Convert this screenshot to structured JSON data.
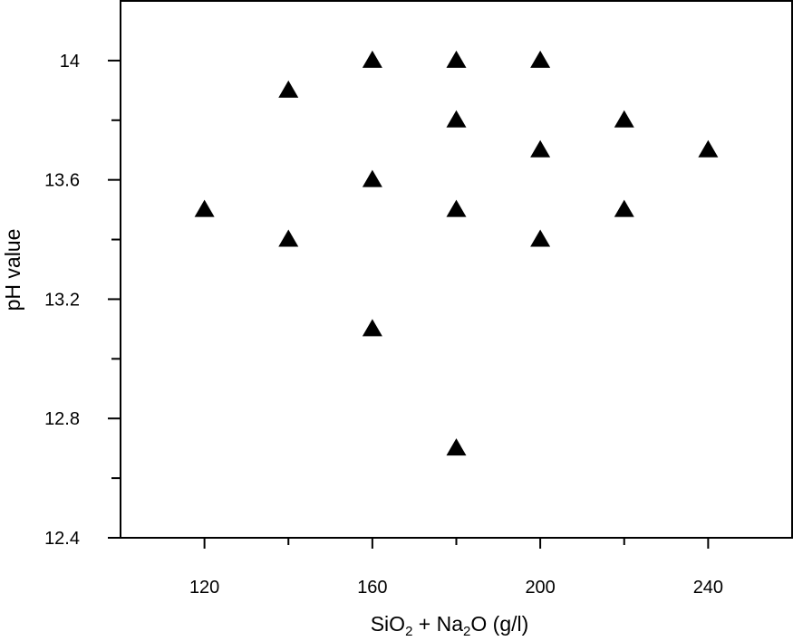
{
  "chart_data": {
    "type": "scatter",
    "title": "",
    "xlabel_parts": [
      {
        "text": "SiO",
        "sub": false
      },
      {
        "text": "2",
        "sub": true
      },
      {
        "text": " + Na",
        "sub": false
      },
      {
        "text": "2",
        "sub": true
      },
      {
        "text": "O (g/l)",
        "sub": false
      }
    ],
    "ylabel": "pH value",
    "xlim": [
      100,
      260
    ],
    "ylim": [
      12.4,
      14.2
    ],
    "x_ticks": [
      120,
      160,
      200,
      240
    ],
    "x_tick_labels": [
      "120",
      "160",
      "200",
      "240"
    ],
    "x_minor_ticks": [
      140,
      180,
      220
    ],
    "y_ticks": [
      12.4,
      12.8,
      13.2,
      13.6,
      14.0
    ],
    "y_tick_labels": [
      "12.4",
      "12.8",
      "13.2",
      "13.6",
      "14"
    ],
    "y_minor_ticks": [
      12.6,
      13.0,
      13.4,
      13.8
    ],
    "grid": false,
    "marker": "filled-triangle",
    "marker_color": "#000000",
    "series": [
      {
        "points": [
          {
            "x": 120,
            "y": 13.5
          },
          {
            "x": 140,
            "y": 13.9
          },
          {
            "x": 140,
            "y": 13.4
          },
          {
            "x": 160,
            "y": 14.0
          },
          {
            "x": 160,
            "y": 13.6
          },
          {
            "x": 160,
            "y": 13.1
          },
          {
            "x": 180,
            "y": 14.0
          },
          {
            "x": 180,
            "y": 13.8
          },
          {
            "x": 180,
            "y": 13.5
          },
          {
            "x": 180,
            "y": 12.7
          },
          {
            "x": 200,
            "y": 14.0
          },
          {
            "x": 200,
            "y": 13.7
          },
          {
            "x": 200,
            "y": 13.4
          },
          {
            "x": 220,
            "y": 13.8
          },
          {
            "x": 220,
            "y": 13.5
          },
          {
            "x": 240,
            "y": 13.7
          }
        ]
      }
    ]
  }
}
